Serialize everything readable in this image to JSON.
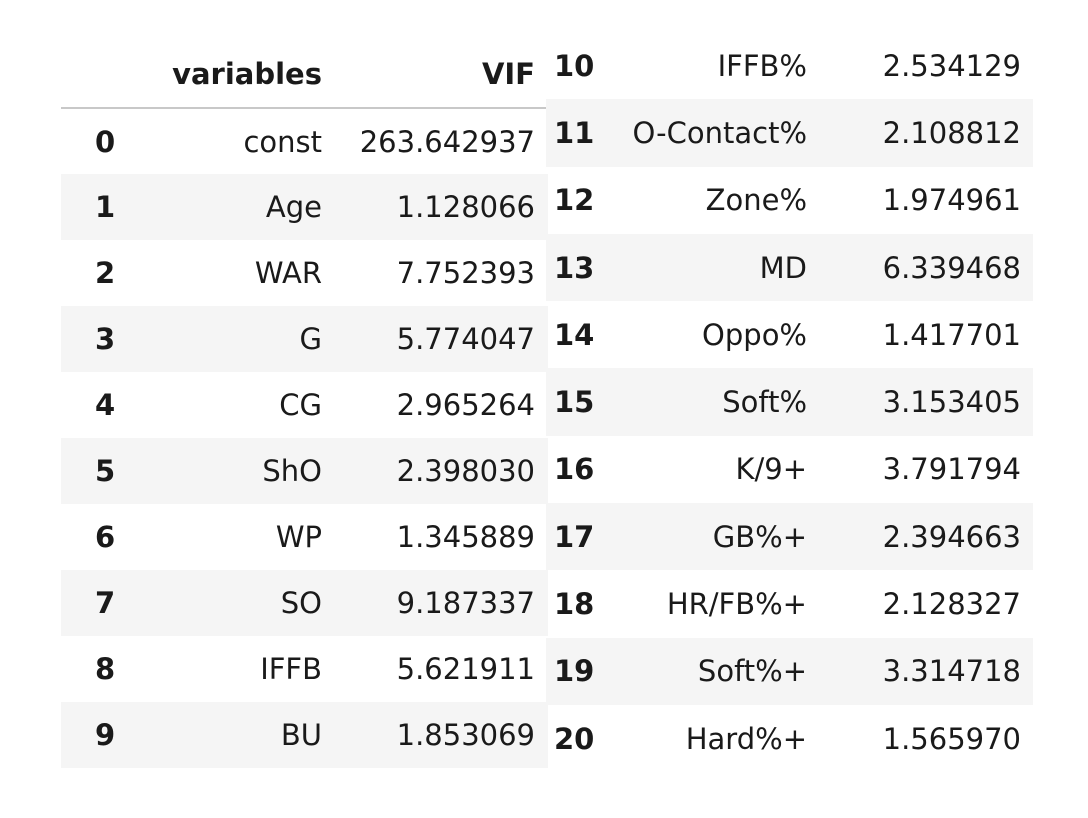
{
  "table": {
    "headers": [
      "",
      "variables",
      "VIF"
    ],
    "rows": [
      {
        "index": "0",
        "variable": "const",
        "vif": "263.642937"
      },
      {
        "index": "1",
        "variable": "Age",
        "vif": "1.128066"
      },
      {
        "index": "2",
        "variable": "WAR",
        "vif": "7.752393"
      },
      {
        "index": "3",
        "variable": "G",
        "vif": "5.774047"
      },
      {
        "index": "4",
        "variable": "CG",
        "vif": "2.965264"
      },
      {
        "index": "5",
        "variable": "ShO",
        "vif": "2.398030"
      },
      {
        "index": "6",
        "variable": "WP",
        "vif": "1.345889"
      },
      {
        "index": "7",
        "variable": "SO",
        "vif": "9.187337"
      },
      {
        "index": "8",
        "variable": "IFFB",
        "vif": "5.621911"
      },
      {
        "index": "9",
        "variable": "BU",
        "vif": "1.853069"
      },
      {
        "index": "10",
        "variable": "IFFB%",
        "vif": "2.534129"
      },
      {
        "index": "11",
        "variable": "O-Contact%",
        "vif": "2.108812"
      },
      {
        "index": "12",
        "variable": "Zone%",
        "vif": "1.974961"
      },
      {
        "index": "13",
        "variable": "MD",
        "vif": "6.339468"
      },
      {
        "index": "14",
        "variable": "Oppo%",
        "vif": "1.417701"
      },
      {
        "index": "15",
        "variable": "Soft%",
        "vif": "3.153405"
      },
      {
        "index": "16",
        "variable": "K/9+",
        "vif": "3.791794"
      },
      {
        "index": "17",
        "variable": "GB%+",
        "vif": "2.394663"
      },
      {
        "index": "18",
        "variable": "HR/FB%+",
        "vif": "2.128327"
      },
      {
        "index": "19",
        "variable": "Soft%+",
        "vif": "3.314718"
      },
      {
        "index": "20",
        "variable": "Hard%+",
        "vif": "1.565970"
      }
    ]
  }
}
